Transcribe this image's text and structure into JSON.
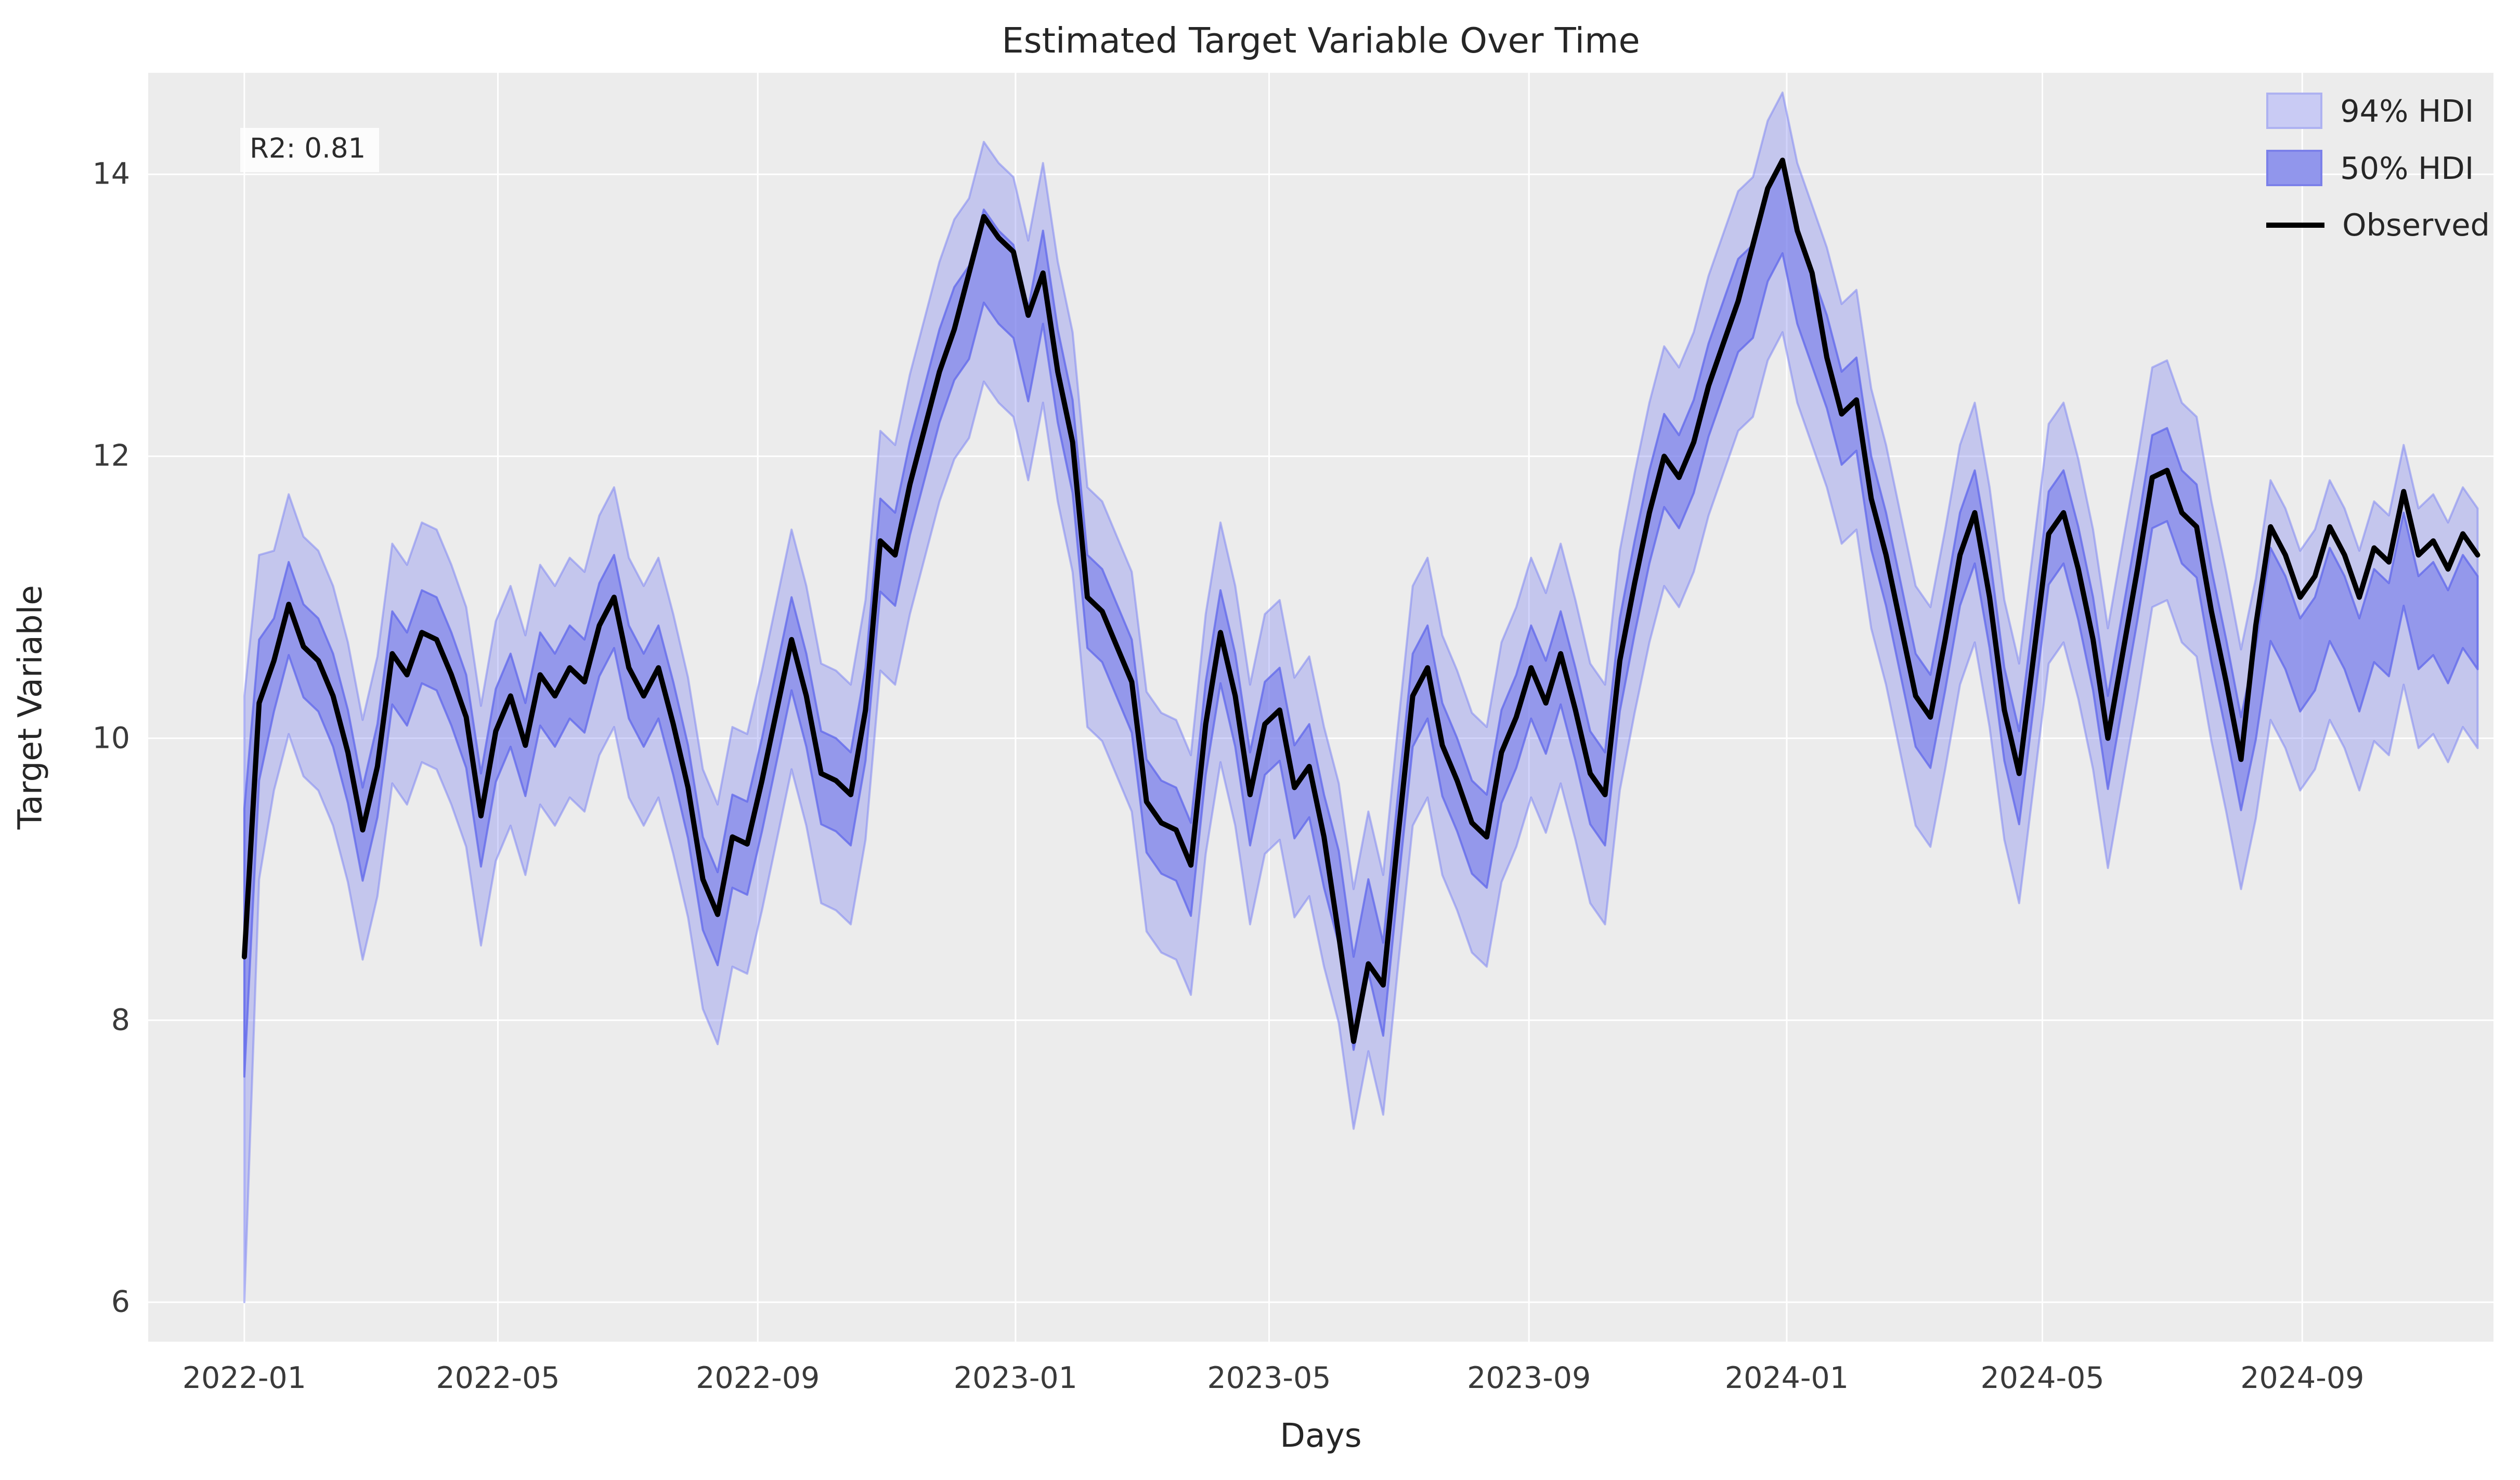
{
  "figure": {
    "title": "Estimated Target Variable Over Time",
    "background_color": "#ffffff"
  },
  "axes": {
    "xlabel": "Days",
    "ylabel": "Target Variable",
    "plot_background": "#ececec",
    "grid_color": "#ffffff",
    "text_color": "#262626",
    "x_ticks": [
      {
        "label": "2022-01",
        "day": 0
      },
      {
        "label": "2022-05",
        "day": 120
      },
      {
        "label": "2022-09",
        "day": 243
      },
      {
        "label": "2023-01",
        "day": 365
      },
      {
        "label": "2023-05",
        "day": 485
      },
      {
        "label": "2023-09",
        "day": 608
      },
      {
        "label": "2024-01",
        "day": 730
      },
      {
        "label": "2024-05",
        "day": 851
      },
      {
        "label": "2024-09",
        "day": 974
      }
    ],
    "y_ticks": [
      6,
      8,
      10,
      12,
      14
    ],
    "xlim_days": [
      -45.5,
      1064.5
    ],
    "ylim": [
      5.72,
      14.72
    ],
    "grid": true
  },
  "annotation": {
    "r2_label": "R2: 0.81"
  },
  "legend": {
    "position": "upper right",
    "entries": [
      {
        "label": "94% HDI",
        "type": "patch",
        "fill": "#c9cbf4",
        "edge": "#aeb2f1"
      },
      {
        "label": "50% HDI",
        "type": "patch",
        "fill": "#9196ec",
        "edge": "#7b80e9"
      },
      {
        "label": "Observed",
        "type": "line",
        "color": "#000000"
      }
    ]
  },
  "chart_data": {
    "type": "line",
    "title": "Estimated Target Variable Over Time",
    "xlabel": "Days",
    "ylabel": "Target Variable",
    "ylim": [
      5.72,
      14.72
    ],
    "legend_position": "upper right",
    "grid": true,
    "start_date": "2022-01-01",
    "step_days": 7,
    "observed_color": "#000000",
    "observed_linewidth": 10,
    "observed": [
      8.45,
      10.25,
      10.55,
      10.95,
      10.65,
      10.55,
      10.3,
      9.9,
      9.35,
      9.8,
      10.6,
      10.45,
      10.75,
      10.7,
      10.45,
      10.15,
      9.45,
      10.05,
      10.3,
      9.95,
      10.45,
      10.3,
      10.5,
      10.4,
      10.8,
      11.0,
      10.5,
      10.3,
      10.5,
      10.1,
      9.65,
      9.0,
      8.75,
      9.3,
      9.25,
      9.7,
      10.2,
      10.7,
      10.3,
      9.75,
      9.7,
      9.6,
      10.2,
      11.4,
      11.3,
      11.8,
      12.2,
      12.6,
      12.9,
      13.3,
      13.7,
      13.55,
      13.45,
      13.0,
      13.3,
      12.6,
      12.1,
      11.0,
      10.9,
      10.65,
      10.4,
      9.55,
      9.4,
      9.35,
      9.1,
      10.1,
      10.75,
      10.3,
      9.6,
      10.1,
      10.2,
      9.65,
      9.8,
      9.3,
      8.6,
      7.85,
      8.4,
      8.25,
      9.3,
      10.3,
      10.5,
      9.95,
      9.7,
      9.4,
      9.3,
      9.9,
      10.15,
      10.5,
      10.25,
      10.6,
      10.2,
      9.75,
      9.6,
      10.55,
      11.1,
      11.6,
      12.0,
      11.85,
      12.1,
      12.5,
      12.8,
      13.1,
      13.5,
      13.9,
      14.1,
      13.6,
      13.3,
      12.7,
      12.3,
      12.4,
      11.7,
      11.3,
      10.8,
      10.3,
      10.15,
      10.7,
      11.3,
      11.6,
      11.0,
      10.2,
      9.75,
      10.6,
      11.45,
      11.6,
      11.2,
      10.7,
      10.0,
      10.6,
      11.2,
      11.85,
      11.9,
      11.6,
      11.5,
      10.9,
      10.4,
      9.85,
      10.8,
      11.5,
      11.3,
      11.0,
      11.15,
      11.5,
      11.3,
      11.0,
      11.35,
      11.25,
      11.75,
      11.3,
      11.4,
      11.2,
      11.45,
      11.3
    ],
    "hdi_model": {
      "bands": [
        {
          "key": "hdi94",
          "label": "94% HDI",
          "below": 0.92,
          "above": 0.78,
          "fill": "rgba(123,128,240,0.35)",
          "edge": "rgba(130,136,242,0.55)",
          "edge_width": 4
        },
        {
          "key": "hdi50",
          "label": "50% HDI",
          "below": 0.36,
          "above": 0.3,
          "fill": "rgba(118,124,234,0.62)",
          "edge": "rgba(100,107,235,0.80)",
          "edge_width": 4
        }
      ],
      "center_shift": [
        [
          49,
          53,
          -0.25
        ],
        [
          74,
          76,
          0.3
        ],
        [
          102,
          106,
          -0.3
        ],
        [
          136,
          151,
          -0.45
        ]
      ],
      "overrides": [
        {
          "i": 0,
          "hdi94": [
            6.0,
            10.3
          ],
          "hdi50": [
            7.6,
            9.5
          ]
        },
        {
          "i": 1,
          "hdi94": [
            9.0,
            11.3
          ],
          "hdi50": [
            9.7,
            10.7
          ]
        }
      ]
    }
  }
}
